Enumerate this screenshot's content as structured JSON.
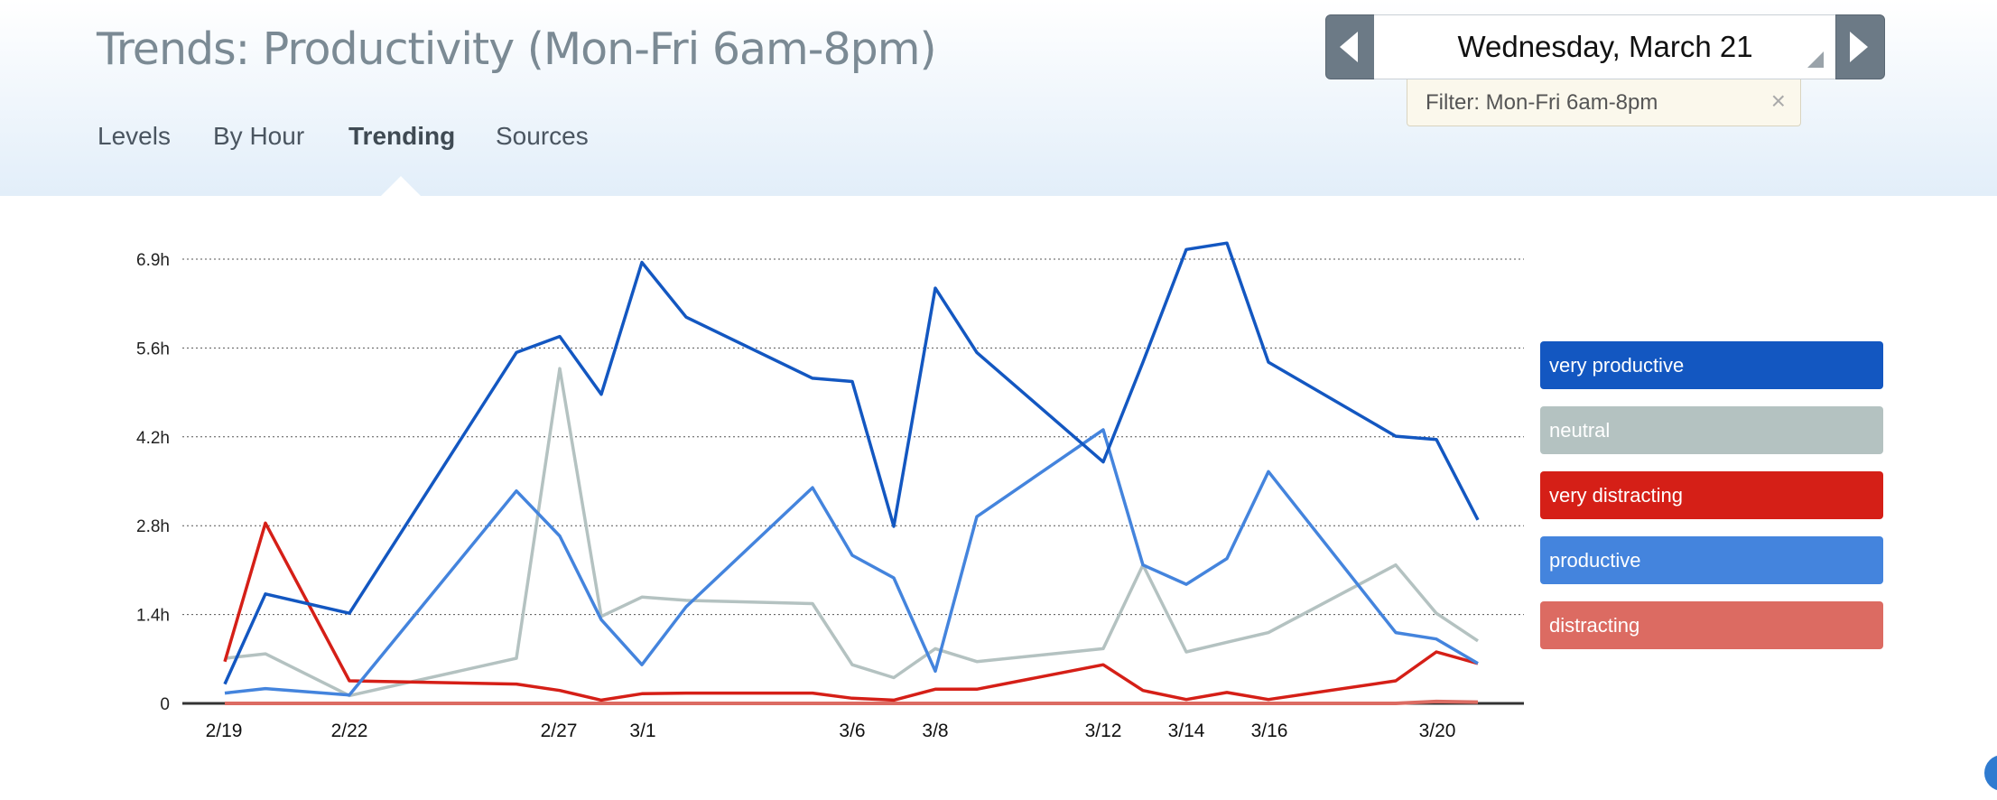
{
  "page": {
    "title": "Trends: Productivity (Mon-Fri 6am-8pm)"
  },
  "nav": {
    "tabs": [
      {
        "label": "Levels",
        "active": false
      },
      {
        "label": "By Hour",
        "active": false
      },
      {
        "label": "Trending",
        "active": true
      },
      {
        "label": "Sources",
        "active": false
      }
    ]
  },
  "date_picker": {
    "date": "Wednesday, March 21",
    "prev_icon": "chevron-left-icon",
    "next_icon": "chevron-right-icon"
  },
  "filter": {
    "text": "Filter: Mon-Fri 6am-8pm",
    "close": "×"
  },
  "colors": {
    "very_productive": "#1357c1",
    "neutral": "#b4c2c1",
    "very_distracting": "#d51f17",
    "productive": "#4484dd",
    "distracting": "#dc6b62"
  },
  "chart_data": {
    "type": "line",
    "x": [
      "2/19",
      "2/20",
      "2/22",
      "2/26",
      "2/27",
      "2/28",
      "2/29",
      "3/1",
      "3/5",
      "3/6",
      "3/7",
      "3/8",
      "3/9",
      "3/12",
      "3/13",
      "3/14",
      "3/15",
      "3/16",
      "3/19",
      "3/20",
      "3/21"
    ],
    "x_ticks": [
      "2/19",
      "2/22",
      "2/27",
      "3/1",
      "3/6",
      "3/8",
      "3/12",
      "3/14",
      "3/16",
      "3/20"
    ],
    "y_ticks": [
      "0",
      "1.4h",
      "2.8h",
      "4.2h",
      "5.6h",
      "6.9h"
    ],
    "ylim": [
      0,
      6.9
    ],
    "grid": true,
    "legend_position": "right",
    "series": [
      {
        "name": "very productive",
        "color": "#1357c1",
        "values": [
          0.3,
          1.7,
          1.4,
          5.45,
          5.7,
          4.8,
          6.85,
          6.0,
          5.05,
          5.0,
          2.75,
          6.45,
          5.45,
          3.75,
          5.3,
          7.05,
          7.15,
          5.3,
          4.15,
          4.1,
          2.85
        ]
      },
      {
        "name": "neutral",
        "color": "#b4c2c1",
        "values": [
          0.7,
          0.77,
          0.12,
          0.7,
          5.2,
          1.35,
          1.65,
          1.6,
          1.55,
          0.6,
          0.4,
          0.85,
          0.65,
          0.85,
          2.15,
          0.8,
          0.95,
          1.1,
          2.15,
          1.4,
          0.97
        ]
      },
      {
        "name": "very distracting",
        "color": "#d51f17",
        "values": [
          0.65,
          2.8,
          0.35,
          0.3,
          0.2,
          0.05,
          0.15,
          0.16,
          0.16,
          0.08,
          0.05,
          0.22,
          0.22,
          0.6,
          0.2,
          0.06,
          0.17,
          0.06,
          0.35,
          0.8,
          0.62
        ]
      },
      {
        "name": "productive",
        "color": "#4484dd",
        "values": [
          0.16,
          0.23,
          0.13,
          3.3,
          2.6,
          1.3,
          0.6,
          1.5,
          3.35,
          2.3,
          1.95,
          0.5,
          2.9,
          4.25,
          2.15,
          1.85,
          2.25,
          3.6,
          1.1,
          1.0,
          0.62
        ]
      },
      {
        "name": "distracting",
        "color": "#dc6b62",
        "values": [
          0,
          0,
          0,
          0,
          0,
          0,
          0,
          0,
          0,
          0,
          0,
          0,
          0,
          0,
          0,
          0,
          0,
          0,
          0,
          0.03,
          0.02
        ]
      }
    ]
  }
}
